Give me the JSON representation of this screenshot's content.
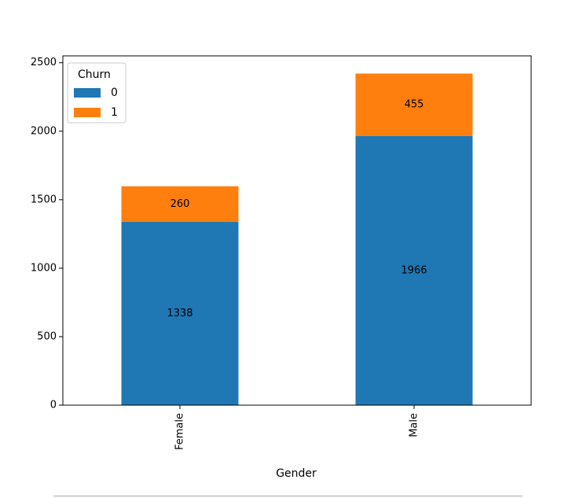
{
  "chart_data": {
    "type": "bar",
    "stacked": true,
    "categories": [
      "Female",
      "Male"
    ],
    "series": [
      {
        "name": "0",
        "values": [
          1338,
          1966
        ],
        "color": "#1f77b4"
      },
      {
        "name": "1",
        "values": [
          260,
          455
        ],
        "color": "#ff7f0e"
      }
    ],
    "xlabel": "Gender",
    "ylabel": "",
    "ylim": [
      0,
      2550
    ],
    "yticks": [
      0,
      500,
      1000,
      1500,
      2000,
      2500
    ],
    "legend": {
      "title": "Churn",
      "placement": "top-left"
    },
    "grid": false,
    "tick_label_rotation": "vertical",
    "bar_labels": true
  }
}
